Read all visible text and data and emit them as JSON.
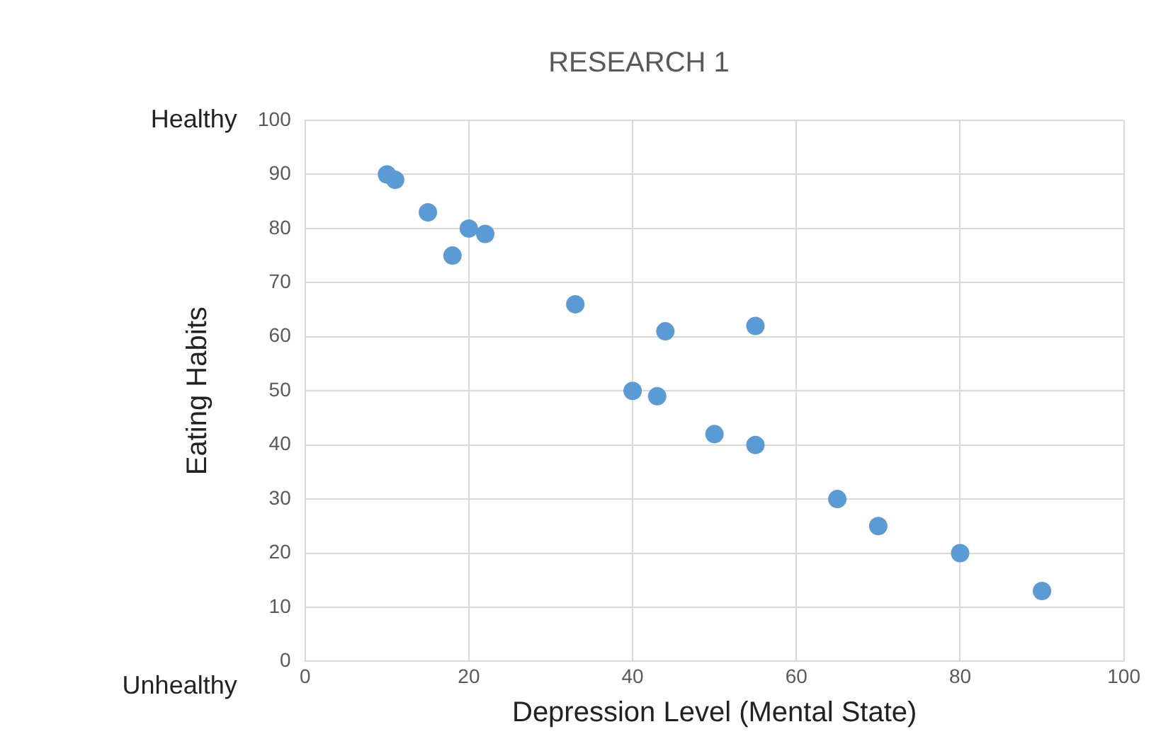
{
  "chart_data": {
    "type": "scatter",
    "title": "RESEARCH 1",
    "xlabel": "Depression Level (Mental State)",
    "ylabel": "Eating Habits",
    "x": [
      10,
      11,
      15,
      18,
      20,
      22,
      33,
      40,
      43,
      44,
      50,
      55,
      55,
      65,
      70,
      80,
      90
    ],
    "series": [
      {
        "color": "#5b9bd5",
        "values": [
          90,
          89,
          83,
          75,
          80,
          79,
          66,
          50,
          49,
          61,
          42,
          62,
          40,
          30,
          25,
          20,
          13
        ]
      }
    ],
    "xlim": [
      0,
      100
    ],
    "xticks": [
      0,
      20,
      40,
      60,
      80,
      100
    ],
    "ylim": [
      0,
      100
    ],
    "yticks": [
      0,
      10,
      20,
      30,
      40,
      50,
      60,
      70,
      80,
      90,
      100
    ],
    "grid": true,
    "legend": false,
    "marker": "circle",
    "annotations": [
      "Healthy",
      "Unhealthy"
    ]
  }
}
